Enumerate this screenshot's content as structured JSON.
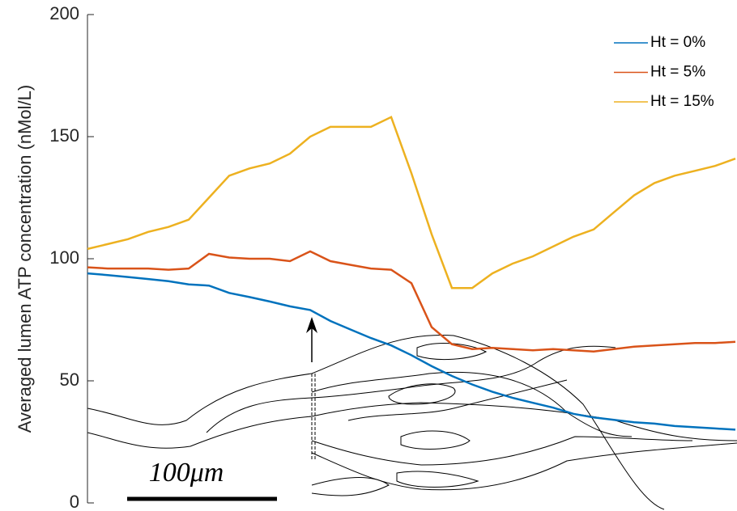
{
  "chart_data": {
    "type": "line",
    "ylabel": "Averaged lumen ATP concentration (nMol/L)",
    "ylim": [
      0,
      200
    ],
    "yticks": [
      0,
      50,
      100,
      150,
      200
    ],
    "legend": "top-right",
    "scale_bar_label": "100μm",
    "series": [
      {
        "name": "Ht = 0%",
        "color": "#0072bd",
        "values": [
          94,
          93.3,
          92.5,
          91.7,
          90.8,
          89.5,
          89,
          86,
          84.3,
          82.5,
          80.5,
          79,
          74.5,
          71,
          67.5,
          64.5,
          60.5,
          56,
          52,
          48.5,
          45.5,
          43,
          41,
          39,
          36.5,
          35,
          34,
          33,
          32.5,
          31.5,
          31,
          30.5,
          30
        ]
      },
      {
        "name": "Ht = 5%",
        "color": "#d95319",
        "values": [
          96.5,
          96,
          96,
          96,
          95.5,
          96,
          102,
          100.5,
          100,
          100,
          99,
          103,
          99,
          97.5,
          96,
          95.5,
          90,
          72,
          65,
          63,
          63.5,
          63,
          62.5,
          63,
          62.5,
          62,
          63,
          64,
          64.5,
          65,
          65.5,
          65.5,
          66
        ]
      },
      {
        "name": "Ht = 15%",
        "color": "#edb120",
        "values": [
          104,
          106,
          108,
          111,
          113,
          116,
          125,
          134,
          137,
          139,
          143,
          150,
          154,
          154,
          154,
          158,
          135,
          110,
          88,
          88,
          94,
          98,
          101,
          105,
          109,
          112,
          119,
          126,
          131,
          134,
          136,
          138,
          141
        ]
      }
    ]
  }
}
